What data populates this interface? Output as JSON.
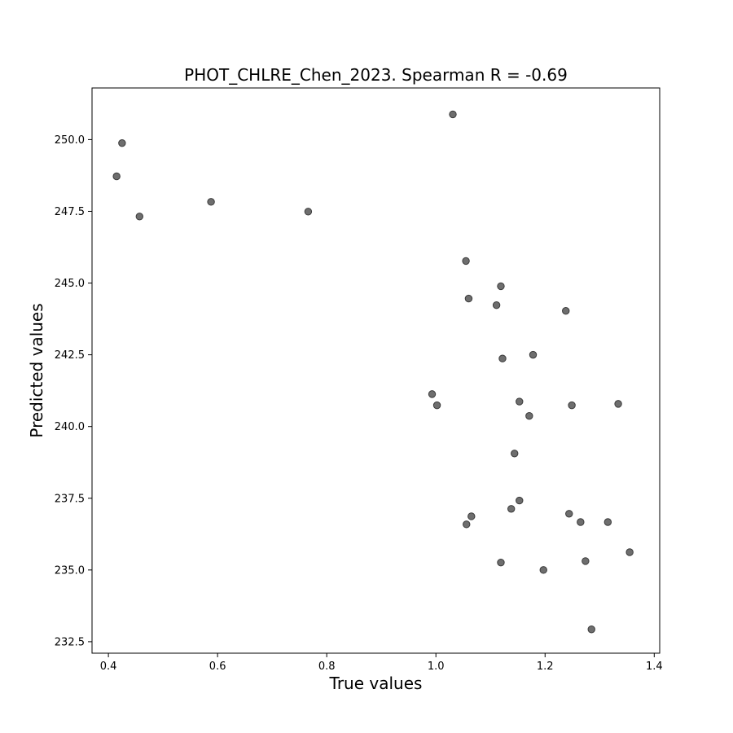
{
  "chart_data": {
    "type": "scatter",
    "title": "PHOT_CHLRE_Chen_2023. Spearman R = -0.69",
    "xlabel": "True values",
    "ylabel": "Predicted values",
    "xlim": [
      0.37,
      1.41
    ],
    "ylim": [
      232.1,
      251.8
    ],
    "xticks": [
      0.4,
      0.6,
      0.8,
      1.0,
      1.2,
      1.4
    ],
    "xtick_labels": [
      "0.4",
      "0.6",
      "0.8",
      "1.0",
      "1.2",
      "1.4"
    ],
    "yticks": [
      232.5,
      235.0,
      237.5,
      240.0,
      242.5,
      245.0,
      247.5,
      250.0
    ],
    "ytick_labels": [
      "232.5",
      "235.0",
      "237.5",
      "240.0",
      "242.5",
      "245.0",
      "247.5",
      "250.0"
    ],
    "grid": false,
    "marker_color": "#6e6e6e",
    "marker_edge_color": "#3a3a3a",
    "points": [
      {
        "x": 0.425,
        "y": 249.88
      },
      {
        "x": 0.415,
        "y": 248.72
      },
      {
        "x": 0.457,
        "y": 247.32
      },
      {
        "x": 0.588,
        "y": 247.83
      },
      {
        "x": 0.766,
        "y": 247.49
      },
      {
        "x": 1.031,
        "y": 250.88
      },
      {
        "x": 1.055,
        "y": 245.77
      },
      {
        "x": 1.119,
        "y": 244.89
      },
      {
        "x": 1.06,
        "y": 244.46
      },
      {
        "x": 1.111,
        "y": 244.23
      },
      {
        "x": 1.238,
        "y": 244.03
      },
      {
        "x": 1.122,
        "y": 242.37
      },
      {
        "x": 1.178,
        "y": 242.5
      },
      {
        "x": 0.993,
        "y": 241.13
      },
      {
        "x": 1.002,
        "y": 240.74
      },
      {
        "x": 1.153,
        "y": 240.87
      },
      {
        "x": 1.249,
        "y": 240.74
      },
      {
        "x": 1.334,
        "y": 240.79
      },
      {
        "x": 1.171,
        "y": 240.37
      },
      {
        "x": 1.144,
        "y": 239.06
      },
      {
        "x": 1.153,
        "y": 237.42
      },
      {
        "x": 1.138,
        "y": 237.13
      },
      {
        "x": 1.065,
        "y": 236.87
      },
      {
        "x": 1.056,
        "y": 236.59
      },
      {
        "x": 1.244,
        "y": 236.96
      },
      {
        "x": 1.265,
        "y": 236.67
      },
      {
        "x": 1.315,
        "y": 236.67
      },
      {
        "x": 1.355,
        "y": 235.62
      },
      {
        "x": 1.119,
        "y": 235.26
      },
      {
        "x": 1.274,
        "y": 235.31
      },
      {
        "x": 1.197,
        "y": 235.0
      },
      {
        "x": 1.285,
        "y": 232.93
      }
    ]
  }
}
